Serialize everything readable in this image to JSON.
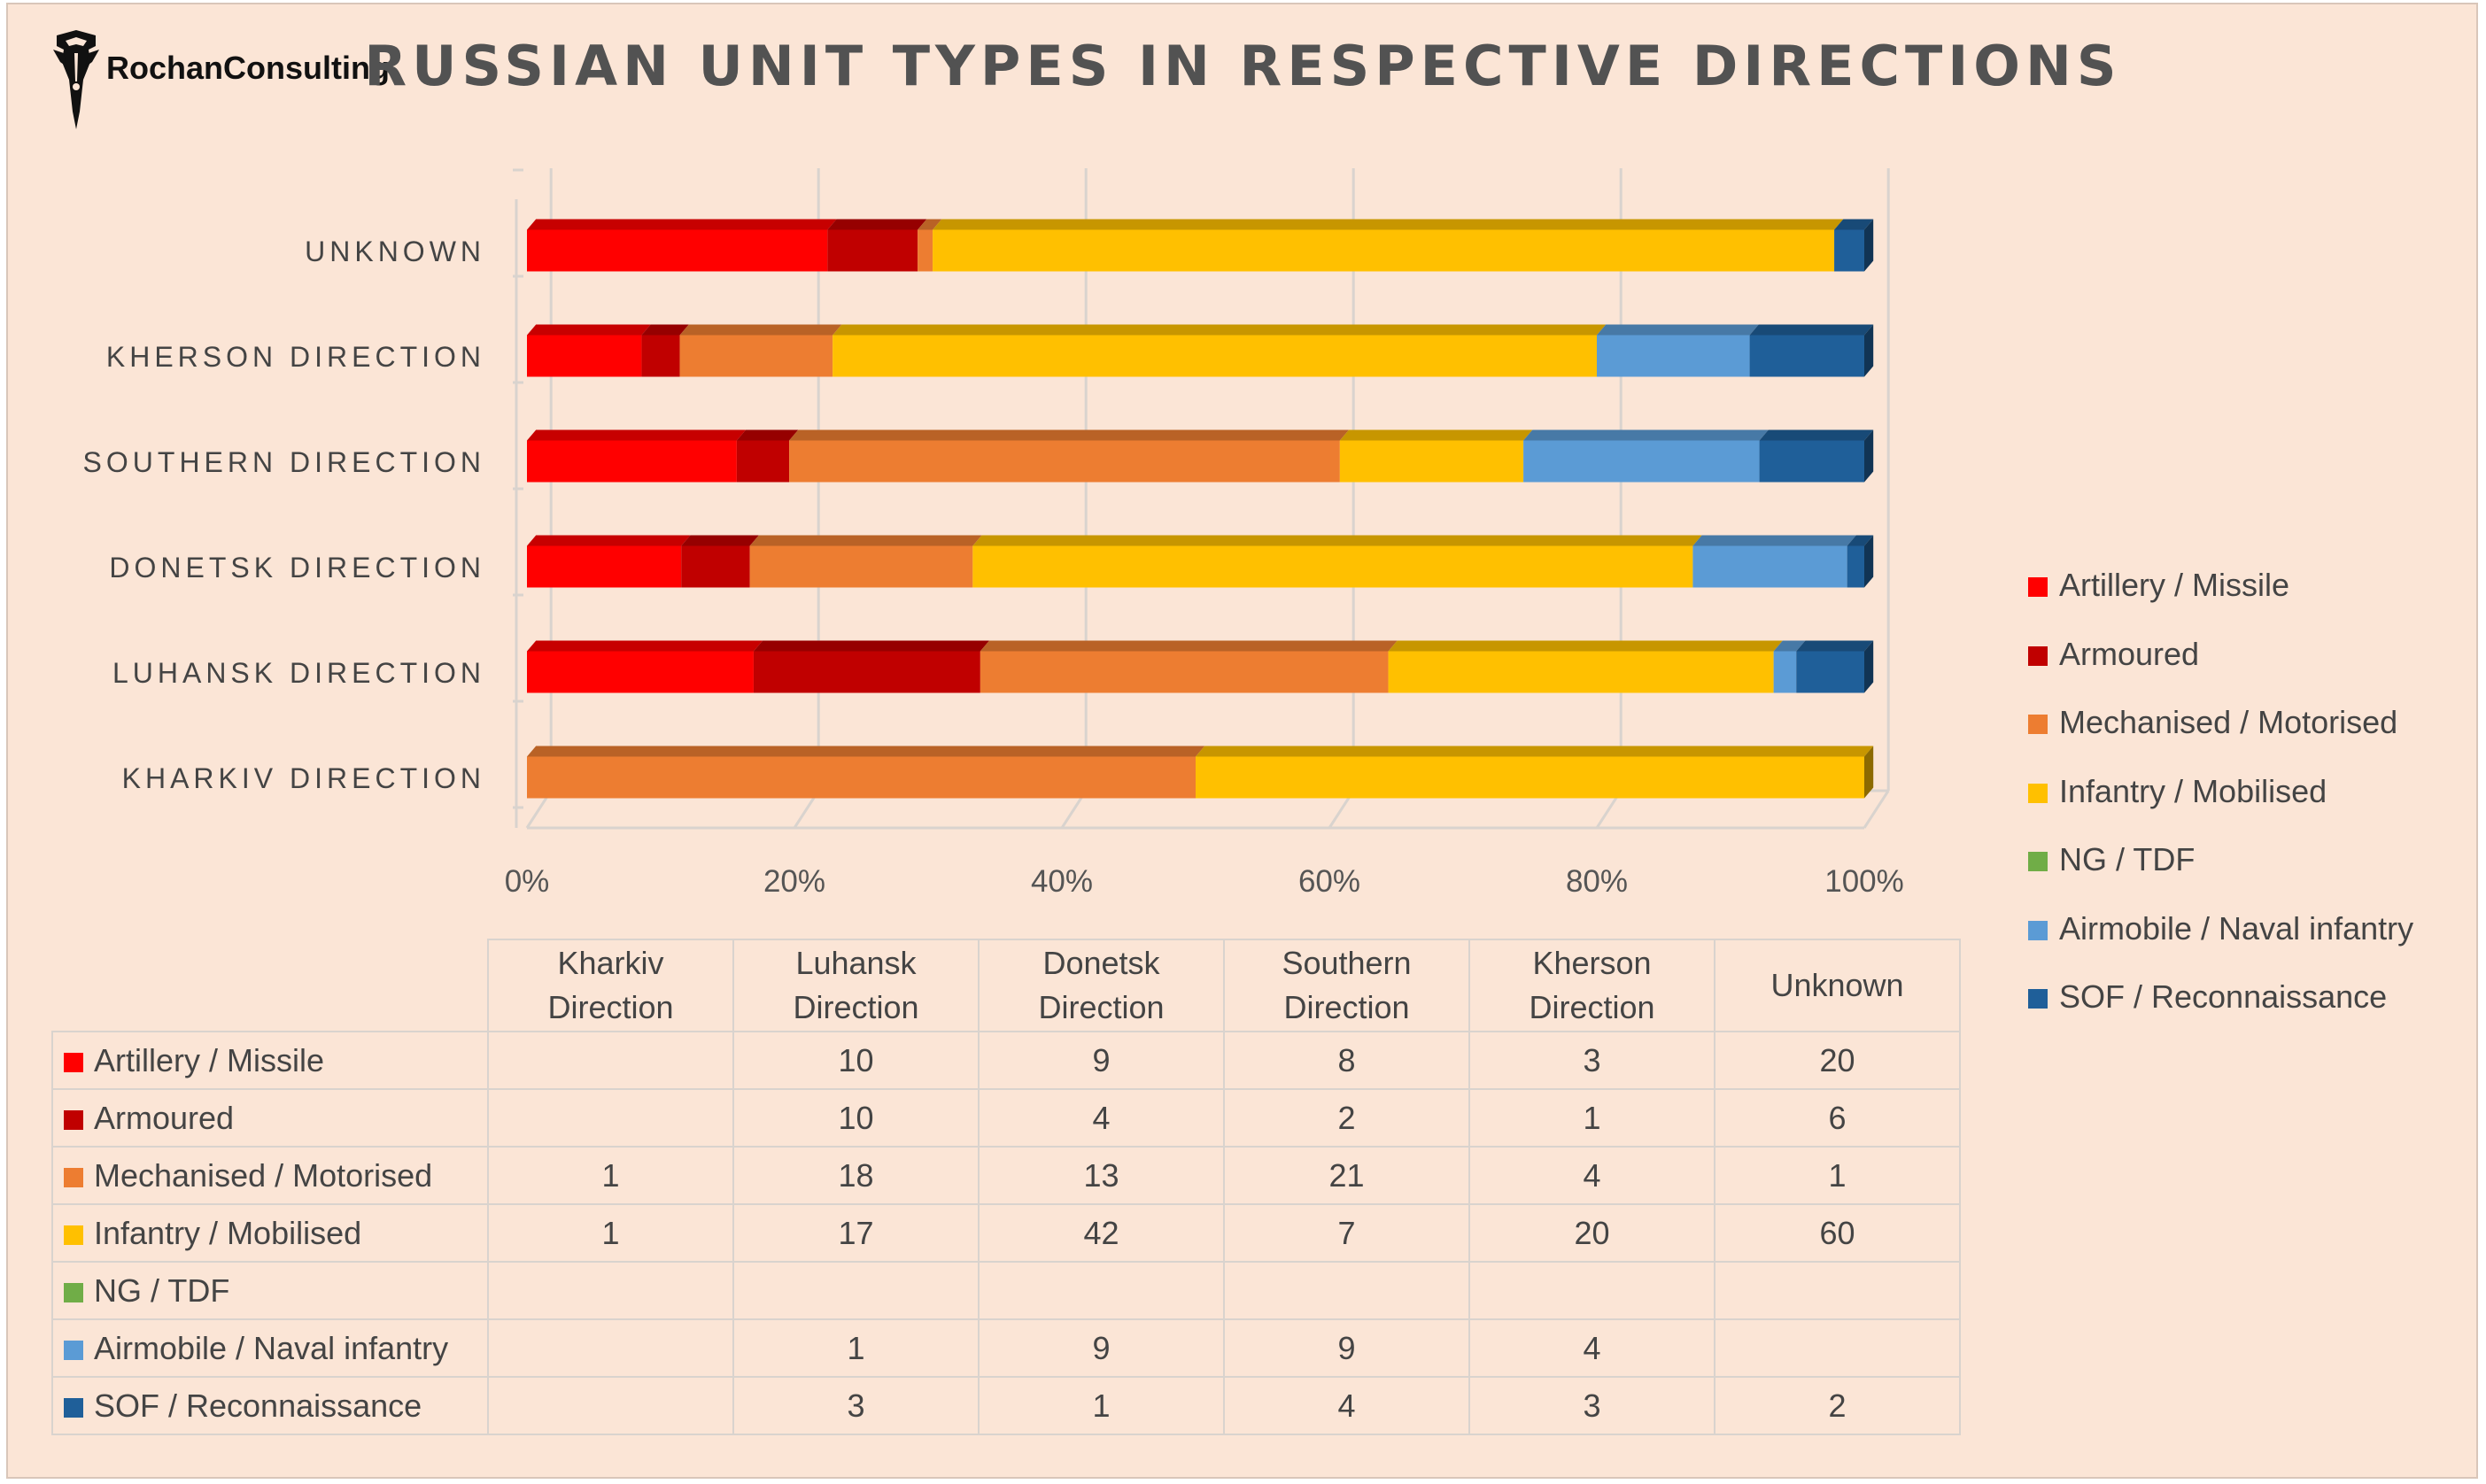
{
  "title": "RUSSIAN UNIT TYPES IN RESPECTIVE DIRECTIONS",
  "logo_text": "RochanConsulting",
  "colors": {
    "background": "#fbe5d6",
    "artillery": "#ff0000",
    "armoured": "#c00000",
    "mechanised": "#ed7d31",
    "infantry": "#ffc000",
    "ng": "#70ad47",
    "airmobile": "#5b9bd5",
    "sof": "#1f5f99"
  },
  "chart_data": {
    "type": "bar",
    "orientation": "horizontal",
    "stacking": "percent",
    "title": "RUSSIAN UNIT TYPES IN RESPECTIVE DIRECTIONS",
    "categories": [
      "KHARKIV DIRECTION",
      "LUHANSK DIRECTION",
      "DONETSK DIRECTION",
      "SOUTHERN DIRECTION",
      "KHERSON DIRECTION",
      "UNKNOWN"
    ],
    "x_ticks": [
      "0%",
      "20%",
      "40%",
      "60%",
      "80%",
      "100%"
    ],
    "xlim": [
      0,
      100
    ],
    "grid": true,
    "legend_position": "right",
    "series": [
      {
        "name": "Artillery / Missile",
        "color": "#ff0000",
        "values": [
          0,
          10,
          9,
          8,
          3,
          20
        ]
      },
      {
        "name": "Armoured",
        "color": "#c00000",
        "values": [
          0,
          10,
          4,
          2,
          1,
          6
        ]
      },
      {
        "name": "Mechanised / Motorised",
        "color": "#ed7d31",
        "values": [
          1,
          18,
          13,
          21,
          4,
          1
        ]
      },
      {
        "name": "Infantry / Mobilised",
        "color": "#ffc000",
        "values": [
          1,
          17,
          42,
          7,
          20,
          60
        ]
      },
      {
        "name": "NG / TDF",
        "color": "#70ad47",
        "values": [
          0,
          0,
          0,
          0,
          0,
          0
        ]
      },
      {
        "name": "Airmobile / Naval infantry",
        "color": "#5b9bd5",
        "values": [
          0,
          1,
          9,
          9,
          4,
          0
        ]
      },
      {
        "name": "SOF / Reconnaissance",
        "color": "#1f5f99",
        "values": [
          0,
          3,
          1,
          4,
          3,
          2
        ]
      }
    ]
  },
  "table": {
    "columns": [
      [
        "Kharkiv",
        "Direction"
      ],
      [
        "Luhansk",
        "Direction"
      ],
      [
        "Donetsk",
        "Direction"
      ],
      [
        "Southern",
        "Direction"
      ],
      [
        "Kherson",
        "Direction"
      ],
      [
        "Unknown"
      ]
    ],
    "rows": [
      {
        "label": "Artillery / Missile",
        "color": "#ff0000",
        "cells": [
          "",
          "10",
          "9",
          "8",
          "3",
          "20"
        ]
      },
      {
        "label": "Armoured",
        "color": "#c00000",
        "cells": [
          "",
          "10",
          "4",
          "2",
          "1",
          "6"
        ]
      },
      {
        "label": "Mechanised / Motorised",
        "color": "#ed7d31",
        "cells": [
          "1",
          "18",
          "13",
          "21",
          "4",
          "1"
        ]
      },
      {
        "label": "Infantry / Mobilised",
        "color": "#ffc000",
        "cells": [
          "1",
          "17",
          "42",
          "7",
          "20",
          "60"
        ]
      },
      {
        "label": "NG / TDF",
        "color": "#70ad47",
        "cells": [
          "",
          "",
          "",
          "",
          "",
          ""
        ]
      },
      {
        "label": "Airmobile / Naval infantry",
        "color": "#5b9bd5",
        "cells": [
          "",
          "1",
          "9",
          "9",
          "4",
          ""
        ]
      },
      {
        "label": "SOF / Reconnaissance",
        "color": "#1f5f99",
        "cells": [
          "",
          "3",
          "1",
          "4",
          "3",
          "2"
        ]
      }
    ]
  }
}
